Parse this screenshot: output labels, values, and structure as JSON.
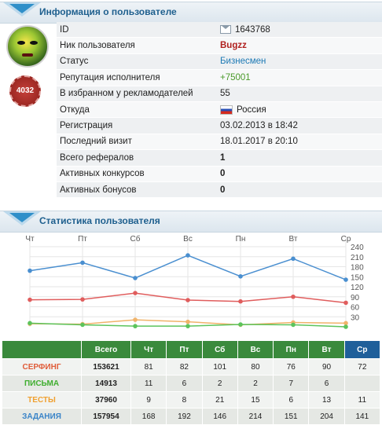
{
  "user_section": {
    "title": "Информация о пользователе"
  },
  "user": {
    "rank_badge": "4032",
    "rows": [
      {
        "label": "ID",
        "value": "1643768",
        "icon": "envelope-icon"
      },
      {
        "label": "Ник пользователя",
        "value": "Bugzz"
      },
      {
        "label": "Статус",
        "value": "Бизнесмен"
      },
      {
        "label": "Репутация исполнителя",
        "value": "+75001"
      },
      {
        "label": "В избранном у рекламодателей",
        "value": "55"
      },
      {
        "label": "Откуда",
        "value": "Россия",
        "icon": "russia-flag-icon"
      },
      {
        "label": "Регистрация",
        "value": "03.02.2013 в 18:42"
      },
      {
        "label": "Последний визит",
        "value": "18.01.2017 в 20:10"
      },
      {
        "label": "Всего рефералов",
        "value": "1"
      },
      {
        "label": "Активных конкурсов",
        "value": "0"
      },
      {
        "label": "Активных бонусов",
        "value": "0"
      }
    ]
  },
  "stats_section": {
    "title": "Статистика пользователя"
  },
  "chart_data": {
    "type": "line",
    "categories": [
      "Чт",
      "Пт",
      "Сб",
      "Вс",
      "Пн",
      "Вт",
      "Ср"
    ],
    "ylim": [
      0,
      240
    ],
    "yticks": [
      30,
      60,
      90,
      120,
      150,
      180,
      210,
      240
    ],
    "series": [
      {
        "name": "ЗАДАНИЯ",
        "color": "#4a8fd0",
        "values": [
          168,
          192,
          146,
          214,
          151,
          204,
          141
        ]
      },
      {
        "name": "СЕРФИНГ",
        "color": "#e05d5d",
        "values": [
          81,
          82,
          101,
          80,
          76,
          90,
          72
        ]
      },
      {
        "name": "ТЕСТЫ",
        "color": "#f0b36a",
        "values": [
          9,
          8,
          21,
          15,
          6,
          13,
          11
        ]
      },
      {
        "name": "ПИСЬМА",
        "color": "#5cc45c",
        "values": [
          11,
          6,
          2,
          2,
          7,
          6,
          0
        ]
      }
    ]
  },
  "stats_table": {
    "headers": [
      "",
      "Всего",
      "Чт",
      "Пт",
      "Сб",
      "Вс",
      "Пн",
      "Вт",
      "Ср"
    ],
    "rows": [
      {
        "name": "СЕРФИНГ",
        "color": "#e05d3a",
        "total": "153621",
        "days": [
          "81",
          "82",
          "101",
          "80",
          "76",
          "90",
          "72"
        ]
      },
      {
        "name": "ПИСЬМА",
        "color": "#3fae2f",
        "total": "14913",
        "days": [
          "11",
          "6",
          "2",
          "2",
          "7",
          "6",
          ""
        ]
      },
      {
        "name": "ТЕСТЫ",
        "color": "#f0a030",
        "total": "37960",
        "days": [
          "9",
          "8",
          "21",
          "15",
          "6",
          "13",
          "11"
        ]
      },
      {
        "name": "ЗАДАНИЯ",
        "color": "#3a84c8",
        "total": "157954",
        "days": [
          "168",
          "192",
          "146",
          "214",
          "151",
          "204",
          "141"
        ]
      }
    ]
  }
}
